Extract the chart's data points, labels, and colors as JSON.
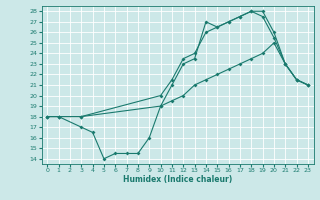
{
  "xlabel": "Humidex (Indice chaleur)",
  "bg_color": "#cce8e8",
  "line_color": "#1a7a6e",
  "grid_color": "#ffffff",
  "xlim": [
    -0.5,
    23.5
  ],
  "ylim": [
    13.5,
    28.5
  ],
  "yticks": [
    14,
    15,
    16,
    17,
    18,
    19,
    20,
    21,
    22,
    23,
    24,
    25,
    26,
    27,
    28
  ],
  "xticks": [
    0,
    1,
    2,
    3,
    4,
    5,
    6,
    7,
    8,
    9,
    10,
    11,
    12,
    13,
    14,
    15,
    16,
    17,
    18,
    19,
    20,
    21,
    22,
    23
  ],
  "line1_x": [
    0,
    1,
    3,
    4,
    5,
    6,
    7,
    8,
    9,
    10,
    11,
    12,
    13,
    14,
    15,
    16,
    17,
    18,
    19,
    20,
    21,
    22,
    23
  ],
  "line1_y": [
    18,
    18,
    17,
    16.5,
    14,
    14.5,
    14.5,
    14.5,
    16,
    19,
    21,
    23,
    23.5,
    27,
    26.5,
    27,
    27.5,
    28,
    27.5,
    25.5,
    23,
    21.5,
    21
  ],
  "line2_x": [
    0,
    1,
    3,
    10,
    11,
    12,
    13,
    14,
    15,
    16,
    17,
    18,
    19,
    20,
    21,
    22,
    23
  ],
  "line2_y": [
    18,
    18,
    18,
    19,
    19.5,
    20,
    21,
    21.5,
    22,
    22.5,
    23,
    23.5,
    24,
    25,
    23,
    21.5,
    21
  ],
  "line3_x": [
    0,
    1,
    3,
    10,
    11,
    12,
    13,
    14,
    15,
    16,
    17,
    18,
    19,
    20,
    21,
    22,
    23
  ],
  "line3_y": [
    18,
    18,
    18,
    20,
    21.5,
    23.5,
    24,
    26,
    26.5,
    27,
    27.5,
    28,
    28,
    26,
    23,
    21.5,
    21
  ]
}
